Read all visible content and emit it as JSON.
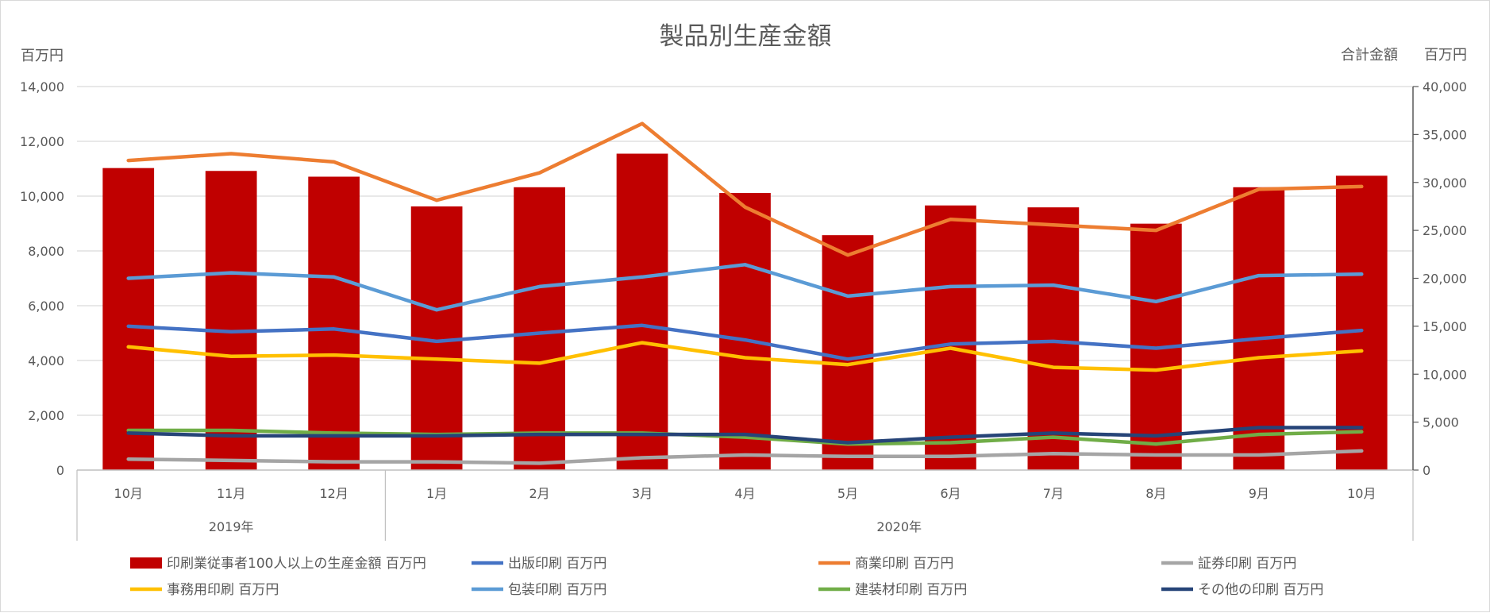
{
  "chart_data": {
    "type": "bar+line",
    "title": "製品別生産金額",
    "left_axis_unit": "百万円",
    "right_axis_label": "合計金額",
    "right_axis_unit": "百万円",
    "categories": [
      "10月",
      "11月",
      "12月",
      "1月",
      "2月",
      "3月",
      "4月",
      "5月",
      "6月",
      "7月",
      "8月",
      "9月",
      "10月"
    ],
    "year_groups": [
      {
        "label": "2019年",
        "count": 3
      },
      {
        "label": "2020年",
        "count": 10
      }
    ],
    "left_axis": {
      "min": 0,
      "max": 14000,
      "step": 2000,
      "ticks": [
        "0",
        "2,000",
        "4,000",
        "6,000",
        "8,000",
        "10,000",
        "12,000",
        "14,000"
      ]
    },
    "right_axis": {
      "min": 0,
      "max": 40000,
      "step": 5000,
      "ticks": [
        "0",
        "5,000",
        "10,000",
        "15,000",
        "20,000",
        "25,000",
        "30,000",
        "35,000",
        "40,000"
      ]
    },
    "grid": true,
    "legend_position": "bottom",
    "bar_series": {
      "name": "印刷業従事者100人以上の生産金額 百万円",
      "color": "#c00000",
      "axis": "right",
      "values": [
        31500,
        31200,
        30600,
        27500,
        29500,
        33000,
        28900,
        24500,
        27600,
        27400,
        25700,
        29500,
        30700
      ]
    },
    "line_series": [
      {
        "name": "出版印刷 百万円",
        "color": "#4472c4",
        "values": [
          5250,
          5050,
          5150,
          4700,
          5000,
          5280,
          4750,
          4050,
          4600,
          4700,
          4450,
          4800,
          5100
        ]
      },
      {
        "name": "商業印刷 百万円",
        "color": "#ed7d31",
        "values": [
          11300,
          11550,
          11250,
          9850,
          10850,
          12650,
          9600,
          7850,
          9150,
          8950,
          8750,
          10250,
          10350
        ]
      },
      {
        "name": "証券印刷 百万円",
        "color": "#a5a5a5",
        "values": [
          400,
          350,
          300,
          300,
          250,
          450,
          550,
          500,
          500,
          600,
          550,
          550,
          700
        ]
      },
      {
        "name": "事務用印刷 百万円",
        "color": "#ffc000",
        "values": [
          4500,
          4150,
          4200,
          4050,
          3900,
          4650,
          4100,
          3850,
          4450,
          3750,
          3650,
          4100,
          4350
        ]
      },
      {
        "name": "包装印刷 百万円",
        "color": "#5b9bd5",
        "values": [
          7000,
          7200,
          7050,
          5850,
          6700,
          7050,
          7500,
          6350,
          6700,
          6750,
          6150,
          7100,
          7150
        ]
      },
      {
        "name": "建装材印刷 百万円",
        "color": "#70ad47",
        "values": [
          1450,
          1450,
          1350,
          1300,
          1350,
          1350,
          1200,
          950,
          1000,
          1200,
          950,
          1300,
          1400
        ]
      },
      {
        "name": "その他の印刷 百万円",
        "color": "#264478",
        "values": [
          1350,
          1250,
          1250,
          1250,
          1300,
          1300,
          1300,
          1000,
          1200,
          1350,
          1250,
          1550,
          1550
        ]
      }
    ]
  }
}
